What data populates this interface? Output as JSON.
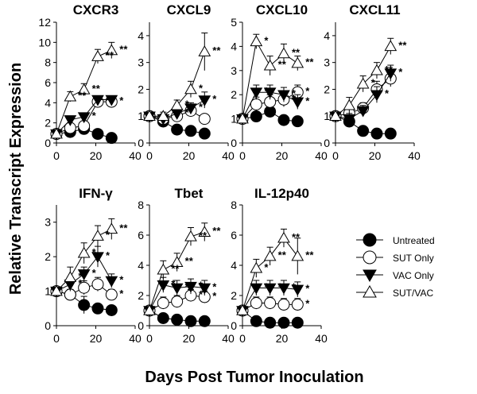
{
  "figure": {
    "xlabel": "Days Post Tumor Inoculation",
    "ylabel": "Relative Transcript Expression"
  },
  "legend": [
    {
      "series": "Untreated",
      "marker": "filled-circle"
    },
    {
      "series": "SUT Only",
      "marker": "open-circle"
    },
    {
      "series": "VAC Only",
      "marker": "filled-triangle-down"
    },
    {
      "series": "SUT/VAC",
      "marker": "open-triangle-up"
    }
  ],
  "chart_data": [
    {
      "type": "line",
      "title": "CXCR3",
      "xlim": [
        0,
        40
      ],
      "ylim": [
        0,
        12
      ],
      "xticks": [
        0,
        20,
        40
      ],
      "yticks": [
        0,
        2,
        4,
        6,
        8,
        10,
        12
      ],
      "series": [
        {
          "name": "Untreated",
          "x": [
            0,
            7,
            14,
            21,
            28
          ],
          "y": [
            0.9,
            1.1,
            1.4,
            0.9,
            0.5
          ],
          "err": [
            0,
            0.2,
            0.2,
            0.2,
            0.1
          ],
          "stars": [
            "",
            "",
            "",
            "",
            ""
          ]
        },
        {
          "name": "SUT Only",
          "x": [
            0,
            7,
            14,
            21,
            28
          ],
          "y": [
            0.9,
            1.5,
            1.7,
            4.1,
            4.1
          ],
          "err": [
            0,
            0.3,
            0.3,
            0.3,
            0.3
          ],
          "stars": [
            "",
            "",
            "",
            "*",
            "*"
          ]
        },
        {
          "name": "VAC Only",
          "x": [
            0,
            7,
            14,
            21,
            28
          ],
          "y": [
            0.9,
            2.3,
            2.6,
            4.3,
            4.3
          ],
          "err": [
            0,
            0.3,
            0.3,
            0.3,
            0.3
          ],
          "stars": [
            "",
            "",
            "*",
            "",
            ""
          ]
        },
        {
          "name": "SUT/VAC",
          "x": [
            0,
            7,
            14,
            21,
            28
          ],
          "y": [
            0.9,
            4.6,
            5.3,
            8.6,
            9.2
          ],
          "err": [
            0,
            0.5,
            0.6,
            0.7,
            0.8
          ],
          "stars": [
            "",
            "**",
            "**",
            "**",
            "**"
          ]
        }
      ]
    },
    {
      "type": "line",
      "title": "CXCL9",
      "xlim": [
        0,
        40
      ],
      "ylim": [
        0,
        4.5
      ],
      "xticks": [
        0,
        20,
        40
      ],
      "yticks": [
        0,
        1,
        2,
        3,
        4
      ],
      "series": [
        {
          "name": "Untreated",
          "x": [
            0,
            7,
            14,
            21,
            28
          ],
          "y": [
            1.0,
            0.8,
            0.5,
            0.45,
            0.35
          ],
          "err": [
            0,
            0.1,
            0.1,
            0.1,
            0.1
          ],
          "stars": [
            "",
            "",
            "",
            "",
            ""
          ]
        },
        {
          "name": "SUT Only",
          "x": [
            0,
            7,
            14,
            21,
            28
          ],
          "y": [
            1.0,
            0.9,
            1.0,
            1.2,
            0.9
          ],
          "err": [
            0,
            0.1,
            0.1,
            0.15,
            0.1
          ],
          "stars": [
            "",
            "",
            "",
            "",
            ""
          ]
        },
        {
          "name": "VAC Only",
          "x": [
            0,
            7,
            14,
            21,
            28
          ],
          "y": [
            1.0,
            0.9,
            1.1,
            1.3,
            1.6
          ],
          "err": [
            0,
            0.15,
            0.15,
            0.2,
            0.3
          ],
          "stars": [
            "",
            "",
            "*",
            "*",
            "*"
          ]
        },
        {
          "name": "SUT/VAC",
          "x": [
            0,
            7,
            14,
            21,
            28
          ],
          "y": [
            1.0,
            1.0,
            1.4,
            2.0,
            3.4
          ],
          "err": [
            0,
            0.15,
            0.2,
            0.3,
            0.7
          ],
          "stars": [
            "",
            "",
            "*",
            "*",
            "**"
          ]
        }
      ]
    },
    {
      "type": "line",
      "title": "CXCL10",
      "xlim": [
        0,
        40
      ],
      "ylim": [
        0,
        5
      ],
      "xticks": [
        0,
        20,
        40
      ],
      "yticks": [
        0,
        1,
        2,
        3,
        4,
        5
      ],
      "series": [
        {
          "name": "Untreated",
          "x": [
            0,
            7,
            14,
            21,
            28
          ],
          "y": [
            1.0,
            1.1,
            1.3,
            0.95,
            0.9
          ],
          "err": [
            0,
            0.15,
            0.2,
            0.15,
            0.1
          ],
          "stars": [
            "",
            "",
            "",
            "",
            ""
          ]
        },
        {
          "name": "SUT Only",
          "x": [
            0,
            7,
            14,
            21,
            28
          ],
          "y": [
            1.0,
            1.6,
            1.7,
            1.8,
            2.1
          ],
          "err": [
            0,
            0.3,
            0.3,
            0.3,
            0.3
          ],
          "stars": [
            "",
            "",
            "",
            "*",
            "*"
          ]
        },
        {
          "name": "VAC Only",
          "x": [
            0,
            7,
            14,
            21,
            28
          ],
          "y": [
            1.0,
            2.1,
            2.1,
            2.0,
            1.7
          ],
          "err": [
            0,
            0.3,
            0.3,
            0.3,
            0.3
          ],
          "stars": [
            "",
            "*",
            "",
            "*",
            "*"
          ]
        },
        {
          "name": "SUT/VAC",
          "x": [
            0,
            7,
            14,
            21,
            28
          ],
          "y": [
            1.0,
            4.2,
            3.2,
            3.7,
            3.3
          ],
          "err": [
            0,
            0.3,
            0.4,
            0.4,
            0.3
          ],
          "stars": [
            "",
            "*",
            "**",
            "**",
            "**"
          ]
        }
      ]
    },
    {
      "type": "line",
      "title": "CXCL11",
      "xlim": [
        0,
        40
      ],
      "ylim": [
        0,
        4.5
      ],
      "xticks": [
        0,
        20,
        40
      ],
      "yticks": [
        0,
        1,
        2,
        3,
        4
      ],
      "series": [
        {
          "name": "Untreated",
          "x": [
            0,
            7,
            14,
            21,
            28
          ],
          "y": [
            1.0,
            0.8,
            0.45,
            0.35,
            0.35
          ],
          "err": [
            0,
            0.1,
            0.1,
            0.1,
            0.1
          ],
          "stars": [
            "",
            "",
            "",
            "",
            ""
          ]
        },
        {
          "name": "SUT Only",
          "x": [
            0,
            7,
            14,
            21,
            28
          ],
          "y": [
            1.0,
            1.1,
            1.3,
            2.0,
            2.4
          ],
          "err": [
            0,
            0.2,
            0.2,
            0.3,
            0.3
          ],
          "stars": [
            "",
            "",
            "",
            "",
            ""
          ]
        },
        {
          "name": "VAC Only",
          "x": [
            0,
            7,
            14,
            21,
            28
          ],
          "y": [
            1.0,
            0.9,
            1.2,
            1.8,
            2.6
          ],
          "err": [
            0,
            0.2,
            0.2,
            0.3,
            0.3
          ],
          "stars": [
            "",
            "",
            "",
            "*",
            "*"
          ]
        },
        {
          "name": "SUT/VAC",
          "x": [
            0,
            7,
            14,
            21,
            28
          ],
          "y": [
            1.0,
            1.4,
            2.2,
            2.7,
            3.6
          ],
          "err": [
            0,
            0.3,
            0.3,
            0.3,
            0.3
          ],
          "stars": [
            "",
            "",
            "*",
            "**",
            "**"
          ]
        }
      ]
    },
    {
      "type": "line",
      "title": "IFN-γ",
      "xlim": [
        0,
        40
      ],
      "ylim": [
        0,
        3.5
      ],
      "xticks": [
        0,
        20,
        40
      ],
      "yticks": [
        0,
        1,
        2,
        3
      ],
      "series": [
        {
          "name": "Untreated",
          "x": [
            0,
            7,
            14,
            21,
            28
          ],
          "y": [
            1.0,
            0.9,
            0.6,
            0.5,
            0.45
          ],
          "err": [
            0,
            0.15,
            0.25,
            0.1,
            0.1
          ],
          "stars": [
            "",
            "",
            "",
            "",
            ""
          ]
        },
        {
          "name": "SUT Only",
          "x": [
            0,
            7,
            14,
            21,
            28
          ],
          "y": [
            1.0,
            0.9,
            1.1,
            1.2,
            0.9
          ],
          "err": [
            0,
            0.15,
            0.2,
            0.2,
            0.15
          ],
          "stars": [
            "",
            "",
            "",
            "",
            "*"
          ]
        },
        {
          "name": "VAC Only",
          "x": [
            0,
            7,
            14,
            21,
            28
          ],
          "y": [
            1.0,
            1.2,
            1.5,
            2.0,
            1.3
          ],
          "err": [
            0,
            0.2,
            0.2,
            0.3,
            0.2
          ],
          "stars": [
            "",
            "*",
            "*",
            "*",
            "*"
          ]
        },
        {
          "name": "SUT/VAC",
          "x": [
            0,
            7,
            14,
            21,
            28
          ],
          "y": [
            1.0,
            1.4,
            2.1,
            2.6,
            2.8
          ],
          "err": [
            0,
            0.3,
            0.3,
            0.3,
            0.3
          ],
          "stars": [
            "",
            "*",
            "*",
            "*",
            "**"
          ]
        }
      ]
    },
    {
      "type": "line",
      "title": "Tbet",
      "xlim": [
        0,
        40
      ],
      "ylim": [
        0,
        8
      ],
      "xticks": [
        0,
        20,
        40
      ],
      "yticks": [
        0,
        2,
        4,
        6,
        8
      ],
      "series": [
        {
          "name": "Untreated",
          "x": [
            0,
            7,
            14,
            21,
            28
          ],
          "y": [
            1.0,
            0.5,
            0.4,
            0.3,
            0.3
          ],
          "err": [
            0,
            0.1,
            0.1,
            0.1,
            0.1
          ],
          "stars": [
            "",
            "",
            "",
            "",
            ""
          ]
        },
        {
          "name": "SUT Only",
          "x": [
            0,
            7,
            14,
            21,
            28
          ],
          "y": [
            1.0,
            1.5,
            1.6,
            2.0,
            1.9
          ],
          "err": [
            0,
            0.4,
            0.4,
            0.4,
            0.4
          ],
          "stars": [
            "",
            "",
            "",
            "*",
            "*"
          ]
        },
        {
          "name": "VAC Only",
          "x": [
            0,
            7,
            14,
            21,
            28
          ],
          "y": [
            1.0,
            2.7,
            2.5,
            2.6,
            2.5
          ],
          "err": [
            0,
            0.5,
            0.5,
            0.5,
            0.5
          ],
          "stars": [
            "",
            "*",
            "*",
            "*",
            "*"
          ]
        },
        {
          "name": "SUT/VAC",
          "x": [
            0,
            7,
            14,
            21,
            28
          ],
          "y": [
            1.0,
            3.7,
            4.2,
            5.9,
            6.2
          ],
          "err": [
            0,
            0.6,
            0.6,
            0.6,
            0.6
          ],
          "stars": [
            "",
            "**",
            "**",
            "**",
            "**"
          ]
        }
      ]
    },
    {
      "type": "line",
      "title": "IL-12p40",
      "xlim": [
        0,
        40
      ],
      "ylim": [
        0,
        8
      ],
      "xticks": [
        0,
        20,
        40
      ],
      "yticks": [
        0,
        2,
        4,
        6,
        8
      ],
      "series": [
        {
          "name": "Untreated",
          "x": [
            0,
            7,
            14,
            21,
            28
          ],
          "y": [
            1.0,
            0.3,
            0.2,
            0.2,
            0.2
          ],
          "err": [
            0,
            0.1,
            0.1,
            0.1,
            0.1
          ],
          "stars": [
            "",
            "",
            "",
            "",
            ""
          ]
        },
        {
          "name": "SUT Only",
          "x": [
            0,
            7,
            14,
            21,
            28
          ],
          "y": [
            1.0,
            1.5,
            1.5,
            1.4,
            1.4
          ],
          "err": [
            0,
            0.4,
            0.4,
            0.4,
            0.4
          ],
          "stars": [
            "",
            "",
            "",
            "",
            "*"
          ]
        },
        {
          "name": "VAC Only",
          "x": [
            0,
            7,
            14,
            21,
            28
          ],
          "y": [
            1.0,
            2.5,
            2.5,
            2.5,
            2.4
          ],
          "err": [
            0,
            0.5,
            0.5,
            0.5,
            0.5
          ],
          "stars": [
            "",
            "*",
            "*",
            "*",
            "*"
          ]
        },
        {
          "name": "SUT/VAC",
          "x": [
            0,
            7,
            14,
            21,
            28
          ],
          "y": [
            1.0,
            3.8,
            4.6,
            5.8,
            4.6
          ],
          "err": [
            0,
            0.6,
            0.6,
            0.6,
            1.2
          ],
          "stars": [
            "",
            "*",
            "**",
            "**",
            "**"
          ]
        }
      ]
    }
  ]
}
